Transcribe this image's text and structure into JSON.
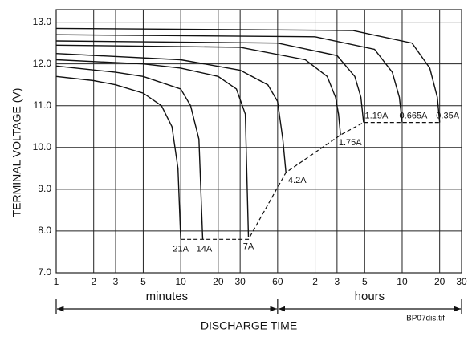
{
  "chart_data": {
    "type": "line",
    "xlabel": "DISCHARGE TIME",
    "ylabel": "TERMINAL VOLTAGE (V)",
    "source": "BP07dis.tif",
    "x_ranges": [
      {
        "label": "minutes"
      },
      {
        "label": "hours"
      }
    ],
    "xscale": "log",
    "grid": true,
    "xlim": [
      1,
      1800
    ],
    "ylim": [
      7,
      13.3
    ],
    "xticks": [
      1,
      2,
      3,
      5,
      10,
      20,
      30,
      60,
      {
        "value": 120,
        "label": "2"
      },
      {
        "value": 180,
        "label": "3"
      },
      {
        "value": 300,
        "label": "5"
      },
      {
        "value": 600,
        "label": "10"
      },
      {
        "value": 1200,
        "label": "20"
      },
      {
        "value": 1800,
        "label": "30"
      }
    ],
    "yticks": [
      {
        "value": 7,
        "label": "7.0"
      },
      {
        "value": 8,
        "label": "8.0"
      },
      {
        "value": 9,
        "label": "9.0"
      },
      {
        "value": 10,
        "label": "10.0"
      },
      {
        "value": 11,
        "label": "11.0"
      },
      {
        "value": 12,
        "label": "12.0"
      },
      {
        "value": 13,
        "label": "13.0"
      }
    ],
    "series": [
      {
        "name": "21A",
        "color": "#111111",
        "x": [
          1,
          2,
          3,
          5,
          7,
          8.5,
          9.5,
          10
        ],
        "values": [
          11.7,
          11.6,
          11.5,
          11.3,
          11.0,
          10.5,
          9.5,
          7.8
        ]
      },
      {
        "name": "14A",
        "color": "#111111",
        "x": [
          1,
          3,
          5,
          10,
          12,
          14,
          15
        ],
        "values": [
          11.95,
          11.8,
          11.7,
          11.4,
          11.0,
          10.2,
          7.8
        ]
      },
      {
        "name": "7A",
        "color": "#111111",
        "x": [
          1,
          5,
          10,
          20,
          28,
          33,
          35
        ],
        "values": [
          12.1,
          12.0,
          11.9,
          11.7,
          11.4,
          10.8,
          7.85
        ]
      },
      {
        "name": "4.2A",
        "color": "#111111",
        "x": [
          1,
          10,
          30,
          50,
          60,
          66,
          70
        ],
        "values": [
          12.25,
          12.1,
          11.85,
          11.5,
          11.1,
          10.2,
          9.4
        ]
      },
      {
        "name": "1.75A",
        "color": "#111111",
        "x": [
          1,
          30,
          100,
          150,
          175,
          185,
          192
        ],
        "values": [
          12.45,
          12.4,
          12.1,
          11.7,
          11.2,
          10.8,
          10.3
        ]
      },
      {
        "name": "1.19A",
        "color": "#111111",
        "x": [
          1,
          60,
          180,
          250,
          280,
          294
        ],
        "values": [
          12.55,
          12.5,
          12.2,
          11.7,
          11.2,
          10.6
        ]
      },
      {
        "name": "0.665A",
        "color": "#111111",
        "x": [
          1,
          120,
          360,
          500,
          570,
          600
        ],
        "values": [
          12.7,
          12.65,
          12.35,
          11.8,
          11.2,
          10.6
        ]
      },
      {
        "name": "0.35A",
        "color": "#111111",
        "x": [
          1,
          240,
          720,
          1000,
          1150,
          1200
        ],
        "values": [
          12.85,
          12.8,
          12.5,
          11.9,
          11.2,
          10.6
        ]
      }
    ],
    "end_voltage": {
      "x": [
        10,
        35,
        70,
        192,
        294,
        1200
      ],
      "values": [
        7.8,
        7.8,
        9.4,
        10.3,
        10.6,
        10.6
      ]
    }
  }
}
